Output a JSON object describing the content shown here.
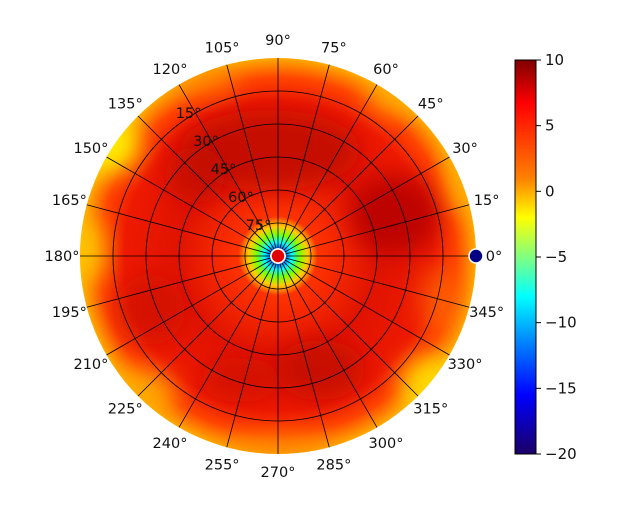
{
  "chart_data": {
    "type": "heatmap",
    "projection": "polar",
    "title": "",
    "azimuth_ticks": [
      "0°",
      "15°",
      "30°",
      "45°",
      "60°",
      "75°",
      "90°",
      "105°",
      "120°",
      "135°",
      "150°",
      "165°",
      "180°",
      "195°",
      "210°",
      "225°",
      "240°",
      "255°",
      "270°",
      "285°",
      "300°",
      "315°",
      "330°",
      "345°"
    ],
    "azimuth_tick_values": [
      0,
      15,
      30,
      45,
      60,
      75,
      90,
      105,
      120,
      135,
      150,
      165,
      180,
      195,
      210,
      225,
      240,
      255,
      270,
      285,
      300,
      315,
      330,
      345
    ],
    "elevation_ticks": [
      "15°",
      "30°",
      "45°",
      "60°",
      "75°"
    ],
    "elevation_tick_values": [
      15,
      30,
      45,
      60,
      75
    ],
    "radial_range": [
      0,
      90
    ],
    "grid": true,
    "colormap": "jet",
    "colorbar": {
      "range": [
        -20,
        10
      ],
      "ticks": [
        10,
        5,
        0,
        -5,
        -10,
        -15,
        -20
      ],
      "tick_labels": [
        "10",
        "5",
        "0",
        "−5",
        "−10",
        "−15",
        "−20"
      ]
    },
    "value_summary": {
      "center_value": -20,
      "center_ring_value": -5,
      "inner_ring_value": 4,
      "body_value": 7.5,
      "rim_value_typical": 4,
      "rim_value_min": 0
    },
    "markers": [
      {
        "azimuth": 0,
        "elevation": 90,
        "color": "#008000"
      },
      {
        "azimuth": 90,
        "elevation": 90,
        "color": "#ffffff"
      },
      {
        "azimuth": 180,
        "elevation": 90,
        "color": "#ffffff"
      },
      {
        "azimuth": 270,
        "elevation": 90,
        "color": "#e00000"
      },
      {
        "azimuth": 0,
        "elevation": 0,
        "color": "#000080"
      }
    ]
  }
}
